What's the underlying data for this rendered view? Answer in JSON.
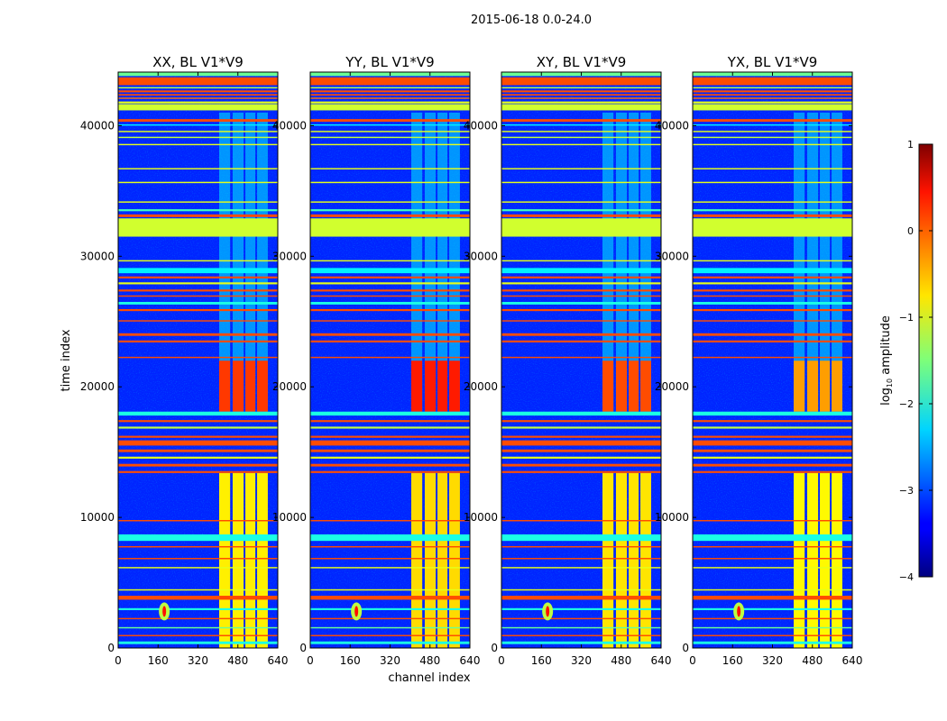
{
  "chart_data": {
    "type": "heatmap",
    "title": "2015-06-18 0.0-24.0",
    "xlabel": "channel index",
    "ylabel": "time index",
    "xlim": [
      0,
      640
    ],
    "ylim": [
      0,
      44100
    ],
    "xticks": [
      "0",
      "160",
      "320",
      "480",
      "640"
    ],
    "xtick_values": [
      0,
      160,
      320,
      480,
      640
    ],
    "yticks": [
      "0",
      "10000",
      "20000",
      "30000",
      "40000"
    ],
    "ytick_values": [
      0,
      10000,
      20000,
      30000,
      40000
    ],
    "panels": [
      {
        "title": "XX, BL V1*V9",
        "block_level": 0.1,
        "bar_level": -0.8
      },
      {
        "title": "YY, BL V1*V9",
        "block_level": 0.25,
        "bar_level": -0.7
      },
      {
        "title": "XY, BL V1*V9",
        "block_level": 0.0,
        "bar_level": -0.75
      },
      {
        "title": "YX, BL V1*V9",
        "block_level": -0.4,
        "bar_level": -0.85
      }
    ],
    "background_level": -3.2,
    "time_bands": [
      {
        "t0": 43800,
        "t1": 44100,
        "v": -1.6
      },
      {
        "t0": 43100,
        "t1": 43700,
        "v": 0.0
      },
      {
        "t0": 42850,
        "t1": 42950,
        "v": -1.2
      },
      {
        "t0": 42550,
        "t1": 42700,
        "v": 0.0
      },
      {
        "t0": 42300,
        "t1": 42420,
        "v": 0.0
      },
      {
        "t0": 42050,
        "t1": 42150,
        "v": -0.2
      },
      {
        "t0": 41700,
        "t1": 41850,
        "v": -1.0
      },
      {
        "t0": 41170,
        "t1": 41650,
        "v": -1.1
      },
      {
        "t0": 40300,
        "t1": 40500,
        "v": 0.0
      },
      {
        "t0": 40000,
        "t1": 40100,
        "v": -2.2
      },
      {
        "t0": 39500,
        "t1": 39600,
        "v": -1.0
      },
      {
        "t0": 39050,
        "t1": 39150,
        "v": -1.2
      },
      {
        "t0": 38500,
        "t1": 38600,
        "v": -1.0
      },
      {
        "t0": 36650,
        "t1": 36750,
        "v": -1.0
      },
      {
        "t0": 35600,
        "t1": 35700,
        "v": -1.0
      },
      {
        "t0": 34100,
        "t1": 34200,
        "v": -1.0
      },
      {
        "t0": 33450,
        "t1": 33600,
        "v": -1.8
      },
      {
        "t0": 33000,
        "t1": 33200,
        "v": 0.0
      },
      {
        "t0": 31500,
        "t1": 32900,
        "v": -1.1
      },
      {
        "t0": 29600,
        "t1": 29700,
        "v": -1.0
      },
      {
        "t0": 28700,
        "t1": 29100,
        "v": -2.2
      },
      {
        "t0": 28300,
        "t1": 28450,
        "v": 0.0
      },
      {
        "t0": 27850,
        "t1": 28000,
        "v": -1.0
      },
      {
        "t0": 27300,
        "t1": 27450,
        "v": 0.0
      },
      {
        "t0": 26900,
        "t1": 27000,
        "v": 0.0
      },
      {
        "t0": 26300,
        "t1": 26500,
        "v": -2.0
      },
      {
        "t0": 25800,
        "t1": 25950,
        "v": 0.0
      },
      {
        "t0": 25000,
        "t1": 25100,
        "v": 0.0
      },
      {
        "t0": 23900,
        "t1": 24100,
        "v": 0.0
      },
      {
        "t0": 23400,
        "t1": 23550,
        "v": 0.0
      },
      {
        "t0": 22200,
        "t1": 22300,
        "v": 0.0
      },
      {
        "t0": 17800,
        "t1": 18100,
        "v": -2.0
      },
      {
        "t0": 17300,
        "t1": 17450,
        "v": 0.0
      },
      {
        "t0": 16800,
        "t1": 16950,
        "v": -1.2
      },
      {
        "t0": 16100,
        "t1": 16250,
        "v": 0.0
      },
      {
        "t0": 15500,
        "t1": 15900,
        "v": 0.0
      },
      {
        "t0": 15000,
        "t1": 15200,
        "v": 0.0
      },
      {
        "t0": 14500,
        "t1": 14650,
        "v": -1.0
      },
      {
        "t0": 13900,
        "t1": 14100,
        "v": 0.0
      },
      {
        "t0": 13400,
        "t1": 13550,
        "v": 0.0
      },
      {
        "t0": 9700,
        "t1": 9800,
        "v": 0.0
      },
      {
        "t0": 8200,
        "t1": 8700,
        "v": -2.0
      },
      {
        "t0": 7700,
        "t1": 7800,
        "v": 0.0
      },
      {
        "t0": 6800,
        "t1": 6900,
        "v": 0.0
      },
      {
        "t0": 6100,
        "t1": 6200,
        "v": -1.0
      },
      {
        "t0": 4400,
        "t1": 4500,
        "v": -1.0
      },
      {
        "t0": 3700,
        "t1": 4000,
        "v": 0.0
      },
      {
        "t0": 2900,
        "t1": 3050,
        "v": -2.0
      },
      {
        "t0": 2200,
        "t1": 2300,
        "v": 0.0
      },
      {
        "t0": 1500,
        "t1": 1600,
        "v": -1.6
      },
      {
        "t0": 900,
        "t1": 1000,
        "v": 0.0
      },
      {
        "t0": 300,
        "t1": 500,
        "v": -2.0
      }
    ],
    "channel_bars": [
      {
        "c0": 405,
        "c1": 449
      },
      {
        "c0": 459,
        "c1": 503
      },
      {
        "c0": 510,
        "c1": 550
      },
      {
        "c0": 557,
        "c1": 600
      }
    ],
    "block_time_range": [
      18100,
      22000
    ],
    "bar_time_range": [
      0,
      13400
    ],
    "streak_time_range": [
      18100,
      41000
    ],
    "streak_level": -2.2,
    "point_source": {
      "channel": 185,
      "time": 2800,
      "v": 0.3
    },
    "colorbar": {
      "label_base": "log",
      "label_sub": "10",
      "label_rest": " amplitude",
      "range": [
        -4,
        1
      ],
      "ticks": [
        "1",
        "0",
        "−1",
        "−2",
        "−3",
        "−4"
      ],
      "tick_values": [
        1,
        0,
        -1,
        -2,
        -3,
        -4
      ],
      "colormap": "jet"
    }
  }
}
